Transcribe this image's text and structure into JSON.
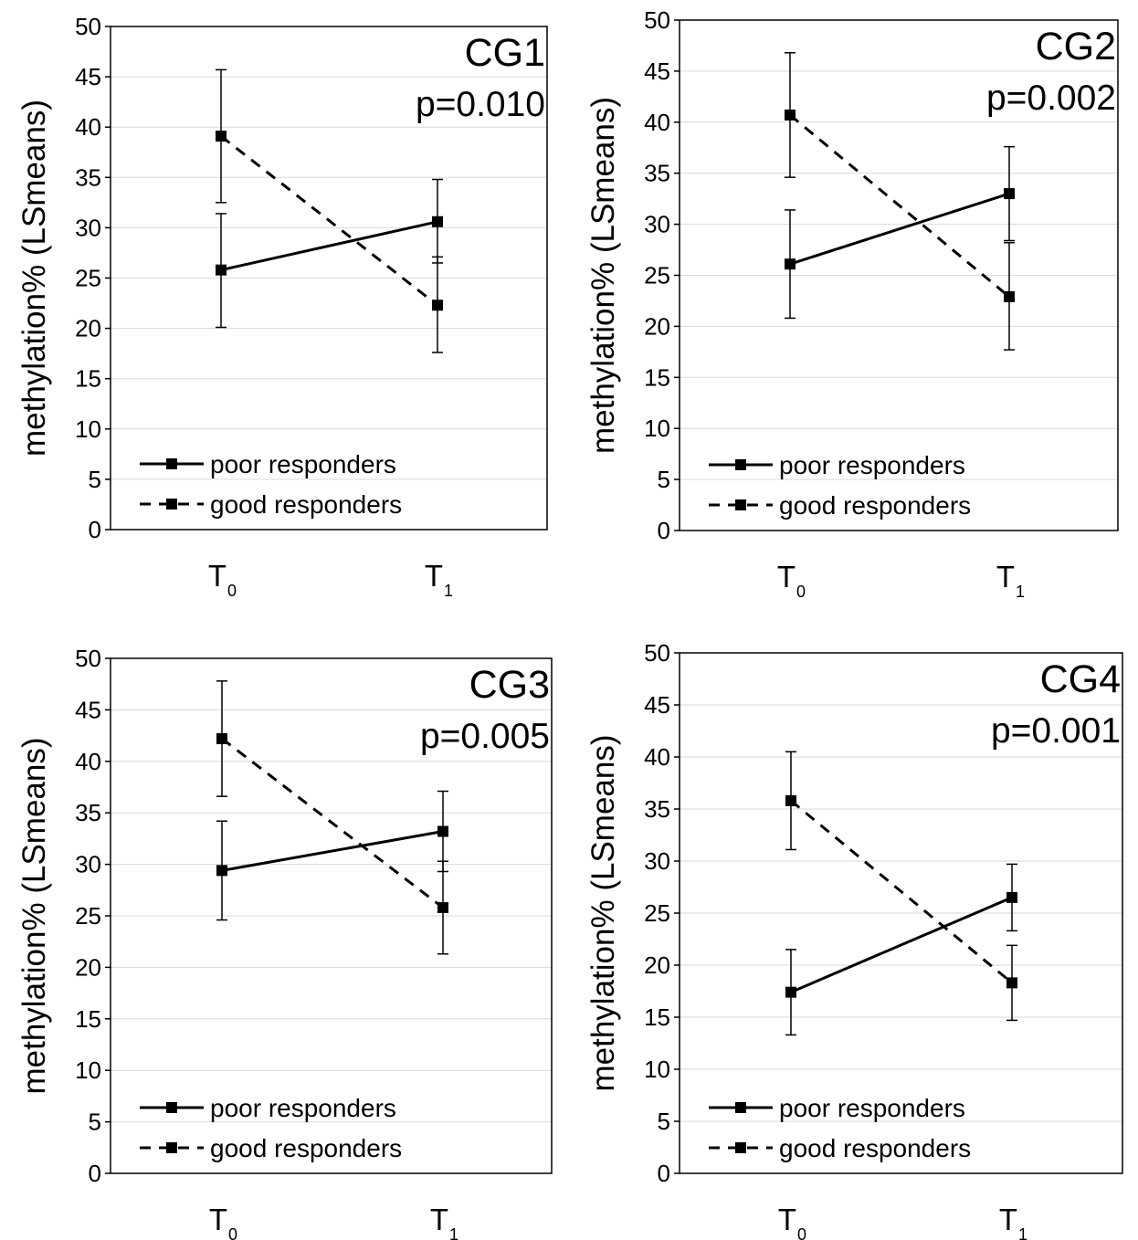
{
  "chart_data": [
    {
      "type": "line",
      "title": "CG1",
      "annotation": "p=0.010",
      "ylabel": "methylation% (LSmeans)",
      "categories": [
        {
          "main": "T",
          "sub": "0"
        },
        {
          "main": "T",
          "sub": "1"
        }
      ],
      "ylim": [
        0,
        50
      ],
      "yticks": [
        "0",
        "5",
        "10",
        "15",
        "20",
        "25",
        "30",
        "35",
        "40",
        "45",
        "50"
      ],
      "grid": "horizontal",
      "legend": "bottom-left",
      "series": [
        {
          "name": "poor responders",
          "style": "solid",
          "values": [
            25.8,
            30.6
          ],
          "err_low": [
            20.1,
            26.5
          ],
          "err_high": [
            31.4,
            34.8
          ]
        },
        {
          "name": "good responders",
          "style": "dashed",
          "values": [
            39.1,
            22.3
          ],
          "err_low": [
            32.5,
            17.6
          ],
          "err_high": [
            45.7,
            27.1
          ]
        }
      ]
    },
    {
      "type": "line",
      "title": "CG2",
      "annotation": "p=0.002",
      "ylabel": "methylation% (LSmeans)",
      "categories": [
        {
          "main": "T",
          "sub": "0"
        },
        {
          "main": "T",
          "sub": "1"
        }
      ],
      "ylim": [
        0,
        50
      ],
      "yticks": [
        "0",
        "5",
        "10",
        "15",
        "20",
        "25",
        "30",
        "35",
        "40",
        "45",
        "50"
      ],
      "grid": "horizontal",
      "legend": "bottom-left",
      "series": [
        {
          "name": "poor responders",
          "style": "solid",
          "values": [
            26.1,
            33.0
          ],
          "err_low": [
            20.8,
            28.4
          ],
          "err_high": [
            31.4,
            37.6
          ]
        },
        {
          "name": "good responders",
          "style": "dashed",
          "values": [
            40.7,
            22.9
          ],
          "err_low": [
            34.6,
            17.7
          ],
          "err_high": [
            46.8,
            28.2
          ]
        }
      ]
    },
    {
      "type": "line",
      "title": "CG3",
      "annotation": "p=0.005",
      "ylabel": "methylation% (LSmeans)",
      "categories": [
        {
          "main": "T",
          "sub": "0"
        },
        {
          "main": "T",
          "sub": "1"
        }
      ],
      "ylim": [
        0,
        50
      ],
      "yticks": [
        "0",
        "5",
        "10",
        "15",
        "20",
        "25",
        "30",
        "35",
        "40",
        "45",
        "50"
      ],
      "grid": "horizontal",
      "legend": "bottom-left",
      "series": [
        {
          "name": "poor responders",
          "style": "solid",
          "values": [
            29.4,
            33.2
          ],
          "err_low": [
            24.6,
            29.3
          ],
          "err_high": [
            34.2,
            37.1
          ]
        },
        {
          "name": "good responders",
          "style": "dashed",
          "values": [
            42.2,
            25.8
          ],
          "err_low": [
            36.6,
            21.3
          ],
          "err_high": [
            47.8,
            30.3
          ]
        }
      ]
    },
    {
      "type": "line",
      "title": "CG4",
      "annotation": "p=0.001",
      "ylabel": "methylation% (LSmeans)",
      "categories": [
        {
          "main": "T",
          "sub": "0"
        },
        {
          "main": "T",
          "sub": "1"
        }
      ],
      "ylim": [
        0,
        50
      ],
      "yticks": [
        "0",
        "5",
        "10",
        "15",
        "20",
        "25",
        "30",
        "35",
        "40",
        "45",
        "50"
      ],
      "grid": "horizontal",
      "legend": "bottom-left",
      "series": [
        {
          "name": "poor responders",
          "style": "solid",
          "values": [
            17.4,
            26.5
          ],
          "err_low": [
            13.3,
            23.3
          ],
          "err_high": [
            21.5,
            29.7
          ]
        },
        {
          "name": "good responders",
          "style": "dashed",
          "values": [
            35.8,
            18.3
          ],
          "err_low": [
            31.1,
            14.7
          ],
          "err_high": [
            40.5,
            21.9
          ]
        }
      ]
    }
  ]
}
